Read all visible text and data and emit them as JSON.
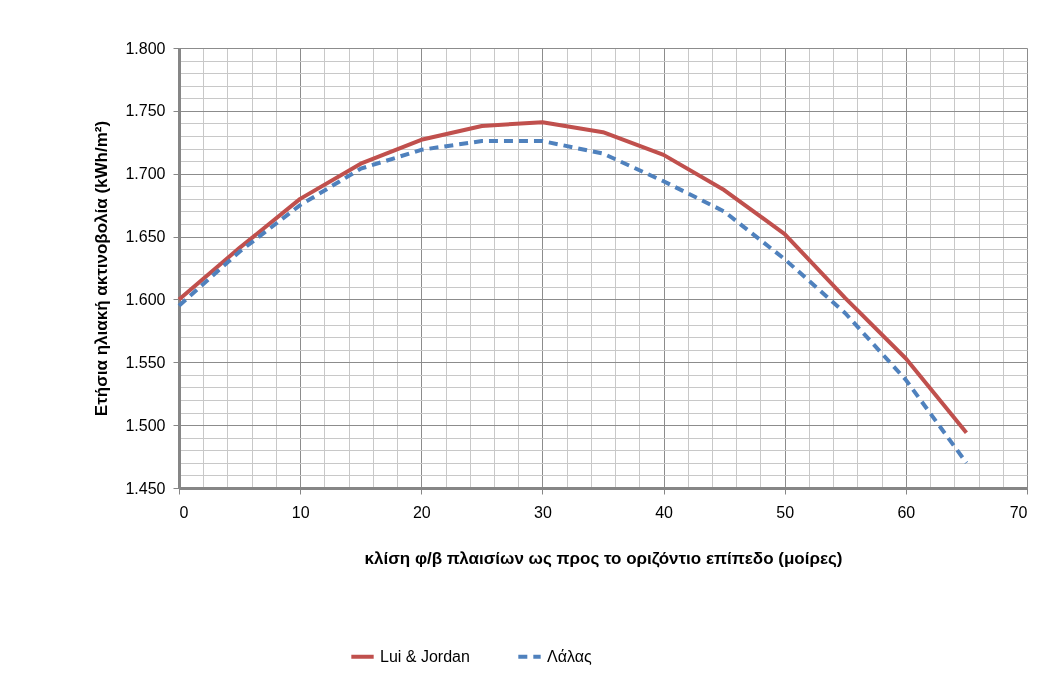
{
  "chart_data": {
    "type": "line",
    "xlabel": "κλίση φ/β πλαισίων ως προς το οριζόντιο επίπεδο (μοίρες)",
    "ylabel": "Ετήσια ηλιακή ακτινοβολία (kWh/m²)",
    "x": [
      0,
      5,
      10,
      15,
      20,
      25,
      30,
      35,
      40,
      45,
      50,
      55,
      60,
      65
    ],
    "series": [
      {
        "name": "Lui & Jordan",
        "color": "#c0504d",
        "line_style": "solid",
        "values": [
          1600,
          1641,
          1680,
          1708,
          1727,
          1738,
          1741,
          1733,
          1715,
          1687,
          1652,
          1601,
          1553,
          1494
        ]
      },
      {
        "name": "Λάλας",
        "color": "#4f81bd",
        "line_style": "dashed",
        "values": [
          1595,
          1638,
          1675,
          1704,
          1719,
          1726,
          1726,
          1716,
          1694,
          1670,
          1632,
          1589,
          1536,
          1470
        ]
      }
    ],
    "xlim": [
      0,
      70
    ],
    "xticks": [
      0,
      10,
      20,
      30,
      40,
      50,
      60,
      70
    ],
    "ylim": [
      1450,
      1800
    ],
    "yticks": [
      {
        "value": 1450,
        "label": "1.450"
      },
      {
        "value": 1500,
        "label": "1.500"
      },
      {
        "value": 1550,
        "label": "1.550"
      },
      {
        "value": 1600,
        "label": "1.600"
      },
      {
        "value": 1650,
        "label": "1.650"
      },
      {
        "value": 1700,
        "label": "1.700"
      },
      {
        "value": 1750,
        "label": "1.750"
      },
      {
        "value": 1800,
        "label": "1.800"
      }
    ],
    "grid": true,
    "legend": "bottom",
    "marker": "none"
  }
}
